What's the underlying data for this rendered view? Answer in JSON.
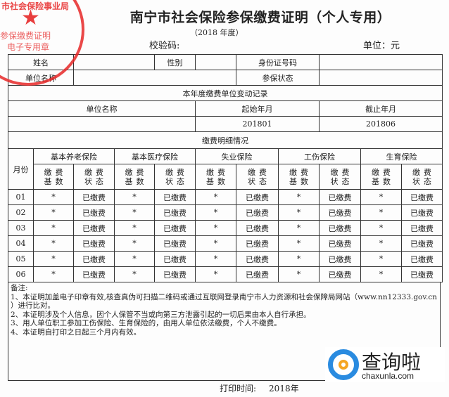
{
  "header": {
    "title": "南宁市社会保险参保缴费证明（个人专用）",
    "year": "（2018 年度）",
    "verify_code_label": "校验码:",
    "unit_label": "单位：元"
  },
  "info": {
    "name_label": "姓名",
    "gender_label": "性别",
    "id_label": "身份证号码",
    "employer_label": "单位名称",
    "status_label": "参保状态"
  },
  "change_record": {
    "title": "本年度缴费单位变动记录",
    "col_employer": "单位名称",
    "col_start": "起始年月",
    "col_end": "截止年月",
    "start": "201801",
    "end": "201806"
  },
  "detail": {
    "title": "缴费明细情况",
    "month_label": "月份",
    "insurances": [
      "基本养老保险",
      "基本医疗保险",
      "失业保险",
      "工伤保险",
      "生育保险"
    ],
    "base_label": "缴费基数",
    "status_label": "缴费状态",
    "rows": [
      {
        "month": "01",
        "cells": [
          "*",
          "已缴费",
          "*",
          "已缴费",
          "*",
          "已缴费",
          "*",
          "已缴费",
          "*",
          "已缴费"
        ]
      },
      {
        "month": "02",
        "cells": [
          "*",
          "已缴费",
          "*",
          "已缴费",
          "*",
          "已缴费",
          "*",
          "已缴费",
          "*",
          "已缴费"
        ]
      },
      {
        "month": "03",
        "cells": [
          "*",
          "已缴费",
          "*",
          "已缴费",
          "*",
          "已缴费",
          "*",
          "已缴费",
          "*",
          "已缴费"
        ]
      },
      {
        "month": "04",
        "cells": [
          "*",
          "已缴费",
          "*",
          "已缴费",
          "*",
          "已缴费",
          "*",
          "已缴费",
          "*",
          "已缴费"
        ]
      },
      {
        "month": "05",
        "cells": [
          "*",
          "已缴费",
          "*",
          "已缴费",
          "*",
          "已缴费",
          "*",
          "已缴费",
          "*",
          "已缴费"
        ]
      },
      {
        "month": "06",
        "cells": [
          "*",
          "已缴费",
          "*",
          "已缴费",
          "*",
          "已缴费",
          "*",
          "已缴费",
          "*",
          "已缴费"
        ]
      }
    ]
  },
  "notes": {
    "title": "备注:",
    "lines": [
      "1、本证明加盖电子印章有效,核查真伪可扫描二维码或通过互联网登录南宁市人力资源和社会保障局网站（www.nn12333.gov.cn ）进行比对。",
      "2、本证明涉及个人信息，因个人保管不当或向第三方泄露引起的一切后果由本人自行承担。",
      "3、用人单位职工参加工伤保险、生育保险的，由用人单位依法缴费，个人不缴费。",
      "4、本证明自打印之日起三个月内有效。"
    ]
  },
  "footer": {
    "print_time_label": "打印时间:",
    "print_time": "2018年"
  },
  "stamp": {
    "arc_text": "市社会保险事业局",
    "line1": "参保缴费证明",
    "line2": "电子专用章",
    "color": "#e62828"
  },
  "watermark": {
    "text": "查询啦",
    "domain": "chaxunla.com",
    "colors": [
      "#2a8be0",
      "#f5a623"
    ]
  }
}
